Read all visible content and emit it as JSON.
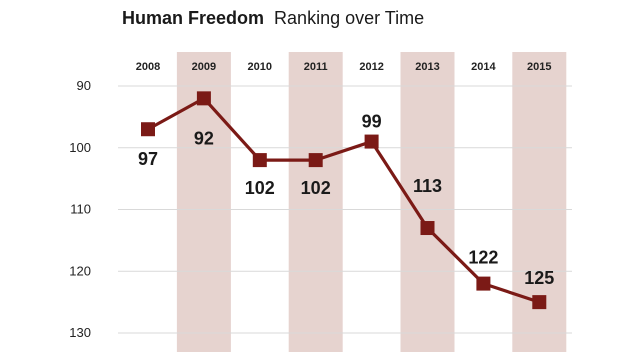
{
  "chart_data": {
    "type": "line",
    "title_bold": "Human Freedom",
    "title_rest": "Ranking over Time",
    "categories": [
      "2008",
      "2009",
      "2010",
      "2011",
      "2012",
      "2013",
      "2014",
      "2015"
    ],
    "series": [
      {
        "values": [
          97,
          92,
          102,
          102,
          99,
          113,
          122,
          125
        ]
      }
    ],
    "data_labels": [
      "97",
      "92",
      "102",
      "102",
      "99",
      "113",
      "122",
      "125"
    ],
    "y_ticks": [
      "90",
      "100",
      "110",
      "120",
      "130"
    ],
    "ylim": [
      88,
      131
    ],
    "y_inverted": true,
    "xlabel": "",
    "ylabel": "",
    "grid": true,
    "colors": {
      "line": "#7b1a16",
      "marker": "#7b1a16",
      "band": "#e6d3cf",
      "grid": "#d9d9d9"
    }
  }
}
